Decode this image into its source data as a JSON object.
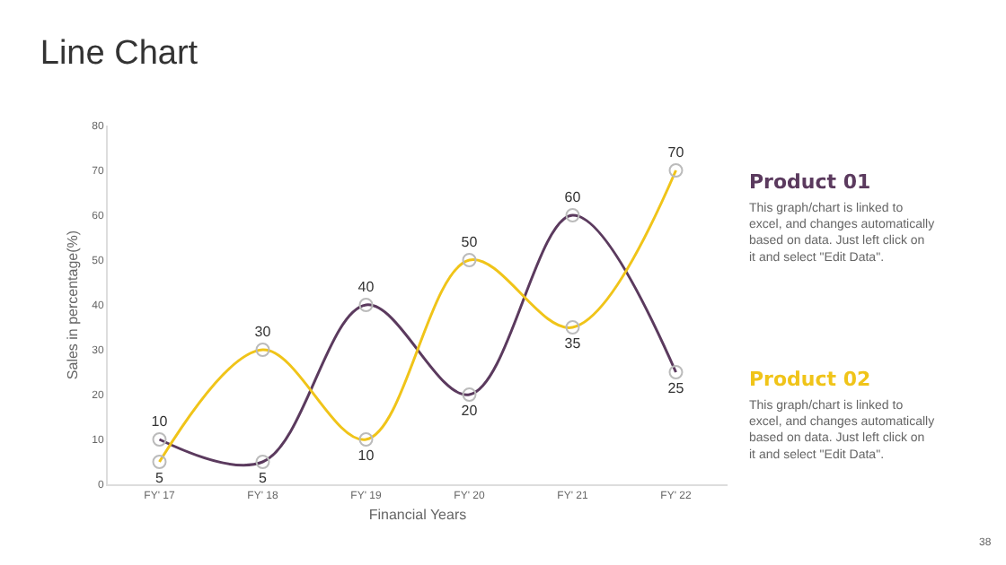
{
  "chart_data": {
    "type": "line",
    "title": "Line Chart",
    "xlabel": "Financial Years",
    "ylabel": "Sales in percentage(%)",
    "categories": [
      "FY' 17",
      "FY' 18",
      "FY' 19",
      "FY' 20",
      "FY' 21",
      "FY' 22"
    ],
    "series": [
      {
        "name": "Product 01",
        "color": "#5b3a5e",
        "values": [
          10,
          5,
          40,
          20,
          60,
          25
        ]
      },
      {
        "name": "Product 02",
        "color": "#f0c419",
        "values": [
          5,
          30,
          10,
          50,
          35,
          70
        ]
      }
    ],
    "annotations": [
      "This graph/chart is linked to excel, and changes automatically based on data. Just left click on it and select \"Edit Data\".",
      "This graph/chart is linked to excel, and changes automatically based on data. Just left click on it and select \"Edit Data\".",
      "38"
    ],
    "ylim": [
      0,
      80
    ],
    "yticks": [
      0,
      10,
      20,
      30,
      40,
      50,
      60,
      70,
      80
    ],
    "grid": false,
    "legend": "right",
    "marker": "circle",
    "line_style": "solid",
    "data_labels": true
  }
}
